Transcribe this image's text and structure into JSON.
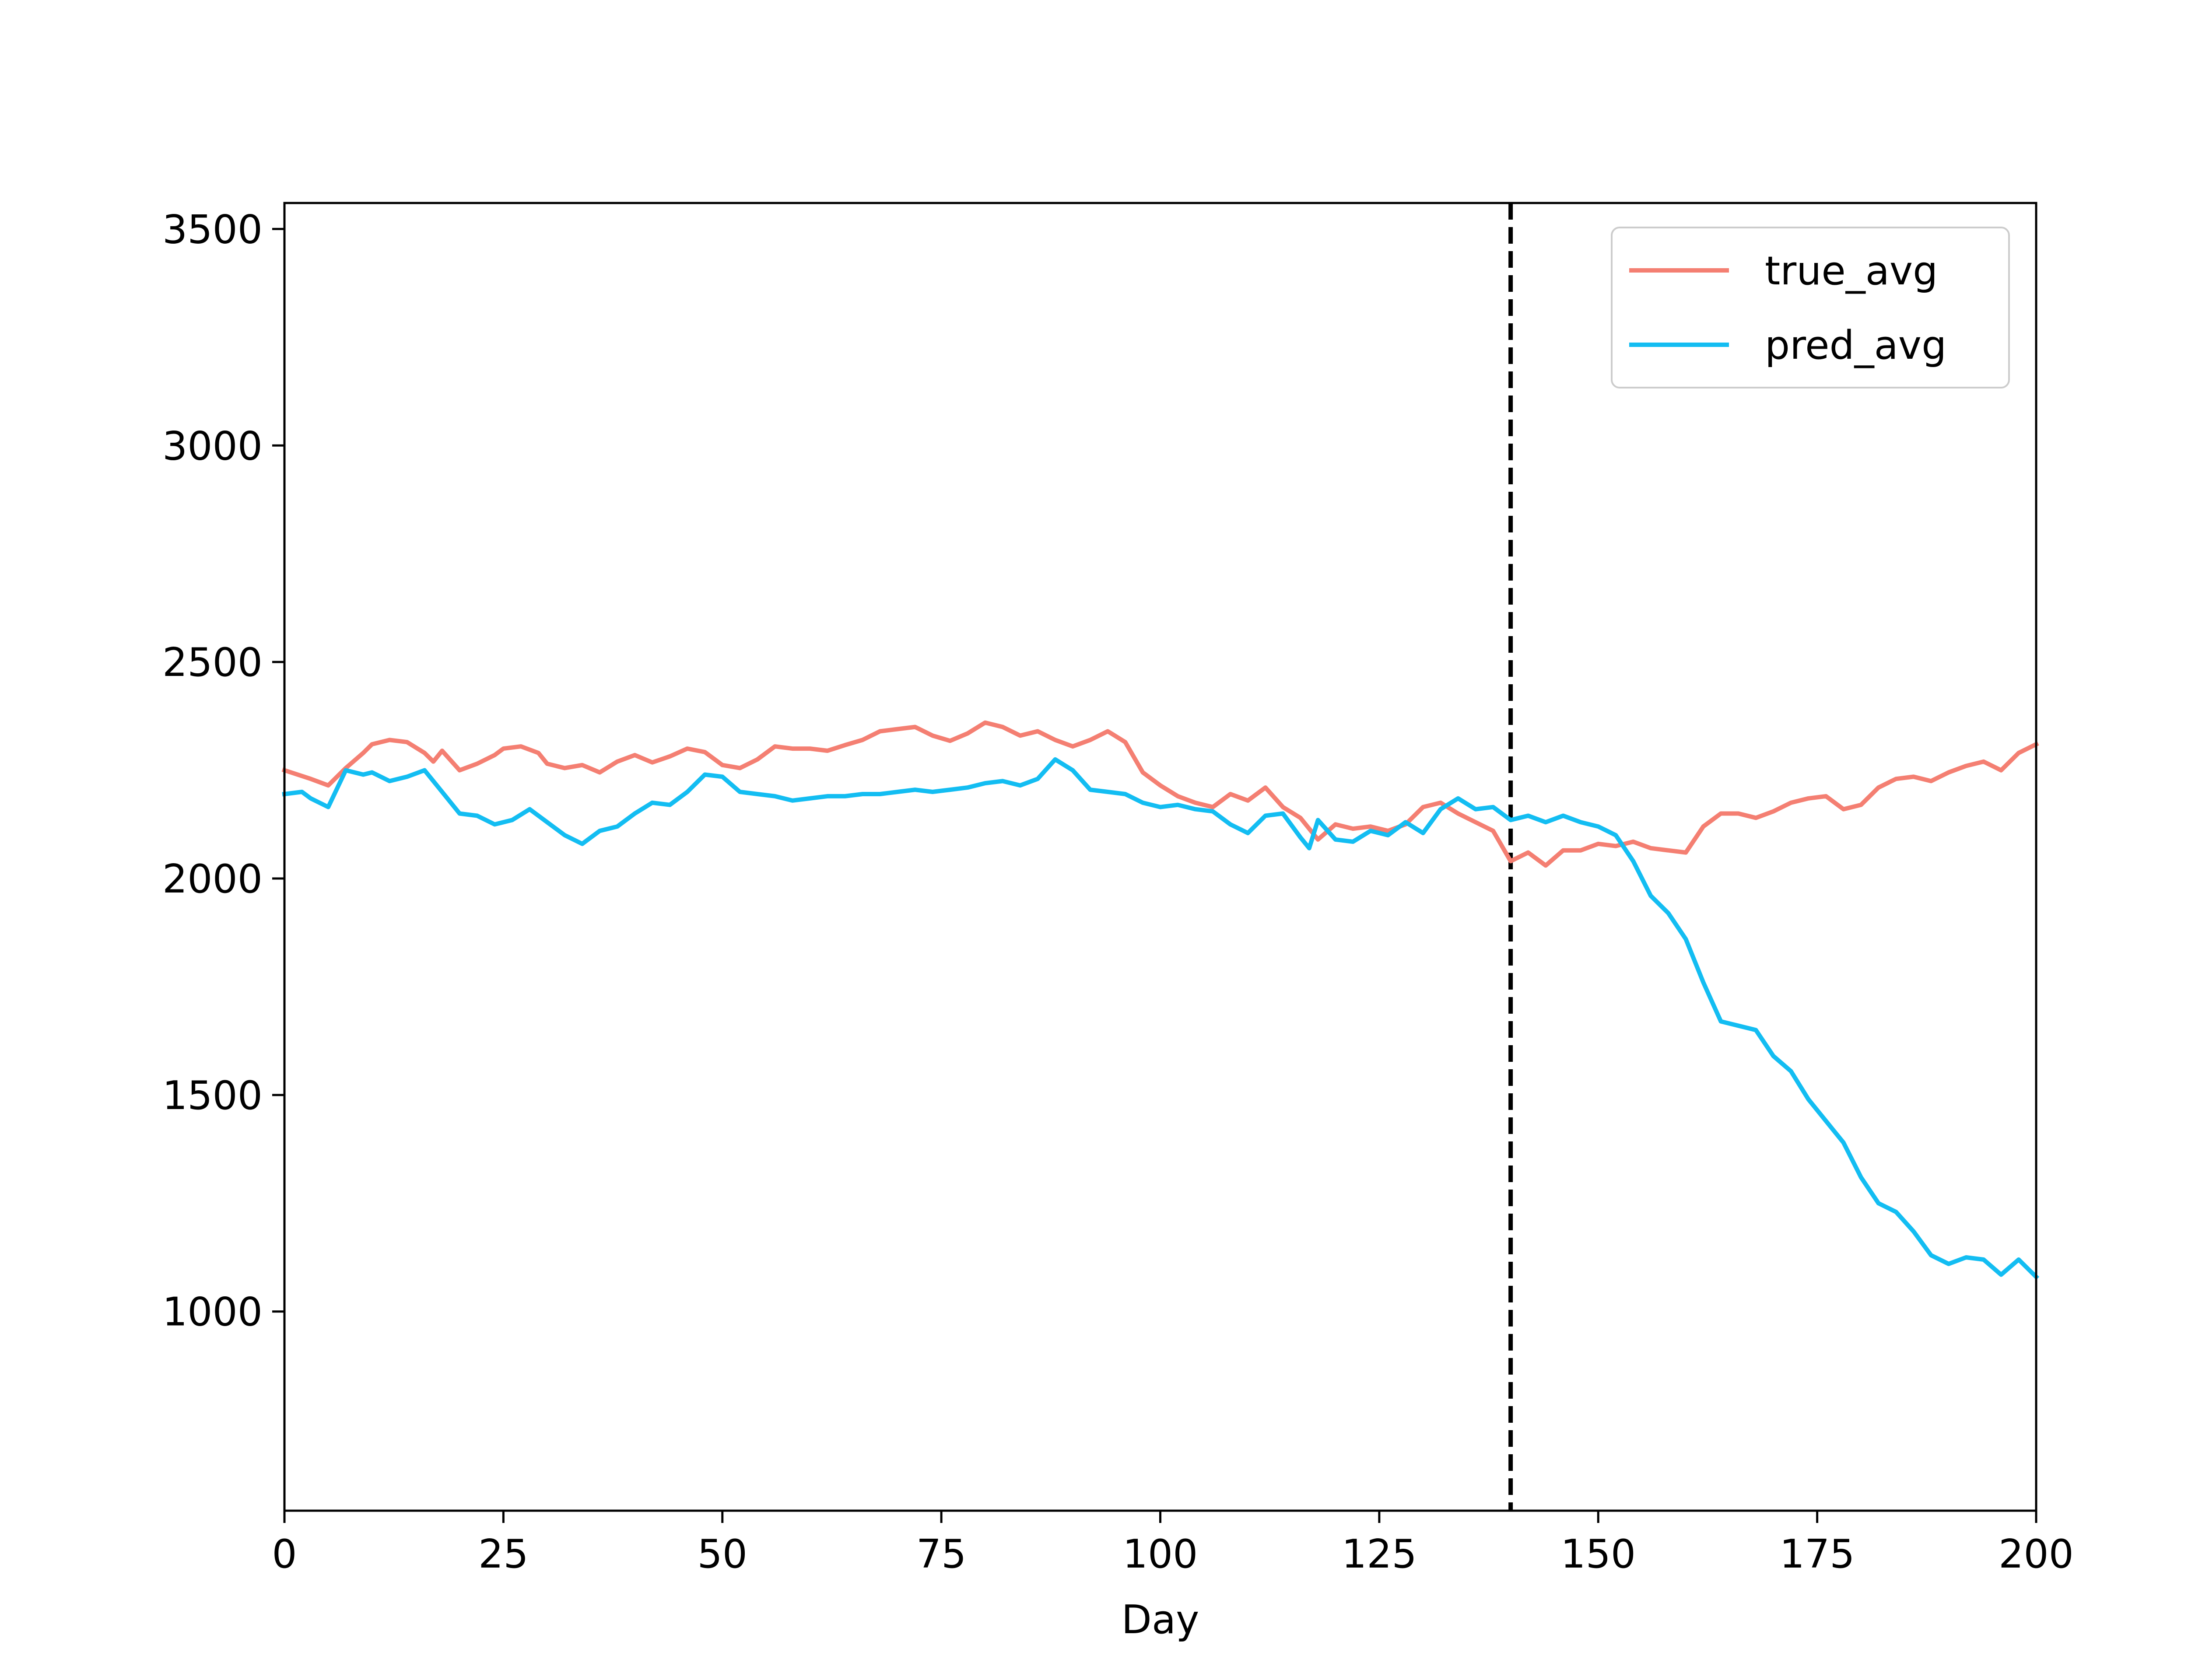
{
  "chart_data": {
    "type": "line",
    "title": "",
    "xlabel": "Day",
    "ylabel": "",
    "xlim": [
      0,
      200
    ],
    "ylim": [
      540,
      3560
    ],
    "xticks": [
      0,
      25,
      50,
      75,
      100,
      125,
      150,
      175,
      200
    ],
    "yticks": [
      1000,
      1500,
      2000,
      2500,
      3000,
      3500
    ],
    "grid": false,
    "legend_position": "top-right",
    "vline": {
      "x": 140,
      "style": "dashed",
      "color": "#000000"
    },
    "series": [
      {
        "name": "true_avg",
        "color": "#f47f72",
        "points": [
          [
            0,
            2250
          ],
          [
            3,
            2230
          ],
          [
            5,
            2215
          ],
          [
            7,
            2255
          ],
          [
            9,
            2290
          ],
          [
            10,
            2310
          ],
          [
            12,
            2320
          ],
          [
            14,
            2315
          ],
          [
            16,
            2290
          ],
          [
            17,
            2270
          ],
          [
            18,
            2295
          ],
          [
            20,
            2250
          ],
          [
            22,
            2265
          ],
          [
            24,
            2285
          ],
          [
            25,
            2300
          ],
          [
            27,
            2305
          ],
          [
            29,
            2290
          ],
          [
            30,
            2265
          ],
          [
            32,
            2255
          ],
          [
            34,
            2262
          ],
          [
            36,
            2245
          ],
          [
            38,
            2270
          ],
          [
            40,
            2285
          ],
          [
            42,
            2268
          ],
          [
            44,
            2282
          ],
          [
            46,
            2300
          ],
          [
            48,
            2292
          ],
          [
            50,
            2262
          ],
          [
            52,
            2255
          ],
          [
            54,
            2275
          ],
          [
            56,
            2305
          ],
          [
            58,
            2300
          ],
          [
            60,
            2300
          ],
          [
            62,
            2295
          ],
          [
            64,
            2308
          ],
          [
            66,
            2320
          ],
          [
            68,
            2340
          ],
          [
            70,
            2345
          ],
          [
            72,
            2350
          ],
          [
            74,
            2330
          ],
          [
            76,
            2318
          ],
          [
            78,
            2335
          ],
          [
            80,
            2360
          ],
          [
            82,
            2350
          ],
          [
            84,
            2330
          ],
          [
            86,
            2340
          ],
          [
            88,
            2320
          ],
          [
            90,
            2305
          ],
          [
            92,
            2320
          ],
          [
            94,
            2340
          ],
          [
            96,
            2315
          ],
          [
            98,
            2245
          ],
          [
            100,
            2215
          ],
          [
            102,
            2190
          ],
          [
            104,
            2175
          ],
          [
            106,
            2165
          ],
          [
            108,
            2195
          ],
          [
            110,
            2180
          ],
          [
            112,
            2210
          ],
          [
            114,
            2165
          ],
          [
            116,
            2140
          ],
          [
            118,
            2090
          ],
          [
            120,
            2125
          ],
          [
            122,
            2115
          ],
          [
            124,
            2120
          ],
          [
            126,
            2110
          ],
          [
            128,
            2125
          ],
          [
            130,
            2165
          ],
          [
            132,
            2175
          ],
          [
            134,
            2150
          ],
          [
            136,
            2130
          ],
          [
            138,
            2110
          ],
          [
            140,
            2040
          ],
          [
            142,
            2060
          ],
          [
            144,
            2030
          ],
          [
            146,
            2065
          ],
          [
            148,
            2065
          ],
          [
            150,
            2080
          ],
          [
            152,
            2075
          ],
          [
            154,
            2085
          ],
          [
            156,
            2070
          ],
          [
            158,
            2065
          ],
          [
            160,
            2060
          ],
          [
            162,
            2120
          ],
          [
            164,
            2150
          ],
          [
            166,
            2150
          ],
          [
            168,
            2140
          ],
          [
            170,
            2155
          ],
          [
            172,
            2175
          ],
          [
            174,
            2185
          ],
          [
            176,
            2190
          ],
          [
            178,
            2160
          ],
          [
            180,
            2170
          ],
          [
            182,
            2210
          ],
          [
            184,
            2230
          ],
          [
            186,
            2235
          ],
          [
            188,
            2225
          ],
          [
            190,
            2245
          ],
          [
            192,
            2260
          ],
          [
            194,
            2270
          ],
          [
            196,
            2250
          ],
          [
            198,
            2290
          ],
          [
            200,
            2310
          ]
        ]
      },
      {
        "name": "pred_avg",
        "color": "#13bdf2",
        "points": [
          [
            0,
            2195
          ],
          [
            2,
            2200
          ],
          [
            3,
            2185
          ],
          [
            5,
            2165
          ],
          [
            7,
            2250
          ],
          [
            9,
            2240
          ],
          [
            10,
            2245
          ],
          [
            12,
            2225
          ],
          [
            14,
            2235
          ],
          [
            16,
            2250
          ],
          [
            18,
            2200
          ],
          [
            20,
            2150
          ],
          [
            22,
            2145
          ],
          [
            24,
            2125
          ],
          [
            26,
            2135
          ],
          [
            28,
            2160
          ],
          [
            30,
            2130
          ],
          [
            32,
            2100
          ],
          [
            34,
            2080
          ],
          [
            36,
            2110
          ],
          [
            38,
            2120
          ],
          [
            40,
            2150
          ],
          [
            42,
            2175
          ],
          [
            44,
            2170
          ],
          [
            46,
            2200
          ],
          [
            48,
            2240
          ],
          [
            50,
            2235
          ],
          [
            52,
            2200
          ],
          [
            54,
            2195
          ],
          [
            56,
            2190
          ],
          [
            58,
            2180
          ],
          [
            60,
            2185
          ],
          [
            62,
            2190
          ],
          [
            64,
            2190
          ],
          [
            66,
            2195
          ],
          [
            68,
            2195
          ],
          [
            70,
            2200
          ],
          [
            72,
            2205
          ],
          [
            74,
            2200
          ],
          [
            76,
            2205
          ],
          [
            78,
            2210
          ],
          [
            80,
            2220
          ],
          [
            82,
            2225
          ],
          [
            84,
            2215
          ],
          [
            86,
            2230
          ],
          [
            88,
            2275
          ],
          [
            90,
            2250
          ],
          [
            92,
            2205
          ],
          [
            94,
            2200
          ],
          [
            96,
            2195
          ],
          [
            98,
            2175
          ],
          [
            100,
            2165
          ],
          [
            102,
            2170
          ],
          [
            104,
            2160
          ],
          [
            106,
            2155
          ],
          [
            108,
            2125
          ],
          [
            110,
            2105
          ],
          [
            112,
            2145
          ],
          [
            114,
            2150
          ],
          [
            116,
            2095
          ],
          [
            117,
            2070
          ],
          [
            118,
            2135
          ],
          [
            120,
            2090
          ],
          [
            122,
            2085
          ],
          [
            124,
            2110
          ],
          [
            126,
            2100
          ],
          [
            128,
            2130
          ],
          [
            130,
            2105
          ],
          [
            132,
            2160
          ],
          [
            134,
            2185
          ],
          [
            136,
            2160
          ],
          [
            138,
            2165
          ],
          [
            140,
            2135
          ],
          [
            142,
            2145
          ],
          [
            144,
            2130
          ],
          [
            146,
            2145
          ],
          [
            148,
            2130
          ],
          [
            150,
            2120
          ],
          [
            152,
            2100
          ],
          [
            154,
            2040
          ],
          [
            156,
            1960
          ],
          [
            158,
            1920
          ],
          [
            160,
            1860
          ],
          [
            162,
            1760
          ],
          [
            164,
            1670
          ],
          [
            166,
            1660
          ],
          [
            168,
            1650
          ],
          [
            170,
            1590
          ],
          [
            172,
            1555
          ],
          [
            174,
            1490
          ],
          [
            176,
            1440
          ],
          [
            178,
            1390
          ],
          [
            180,
            1310
          ],
          [
            182,
            1250
          ],
          [
            184,
            1230
          ],
          [
            186,
            1185
          ],
          [
            188,
            1130
          ],
          [
            190,
            1110
          ],
          [
            192,
            1125
          ],
          [
            194,
            1120
          ],
          [
            196,
            1085
          ],
          [
            198,
            1120
          ],
          [
            200,
            1080
          ]
        ]
      }
    ]
  }
}
